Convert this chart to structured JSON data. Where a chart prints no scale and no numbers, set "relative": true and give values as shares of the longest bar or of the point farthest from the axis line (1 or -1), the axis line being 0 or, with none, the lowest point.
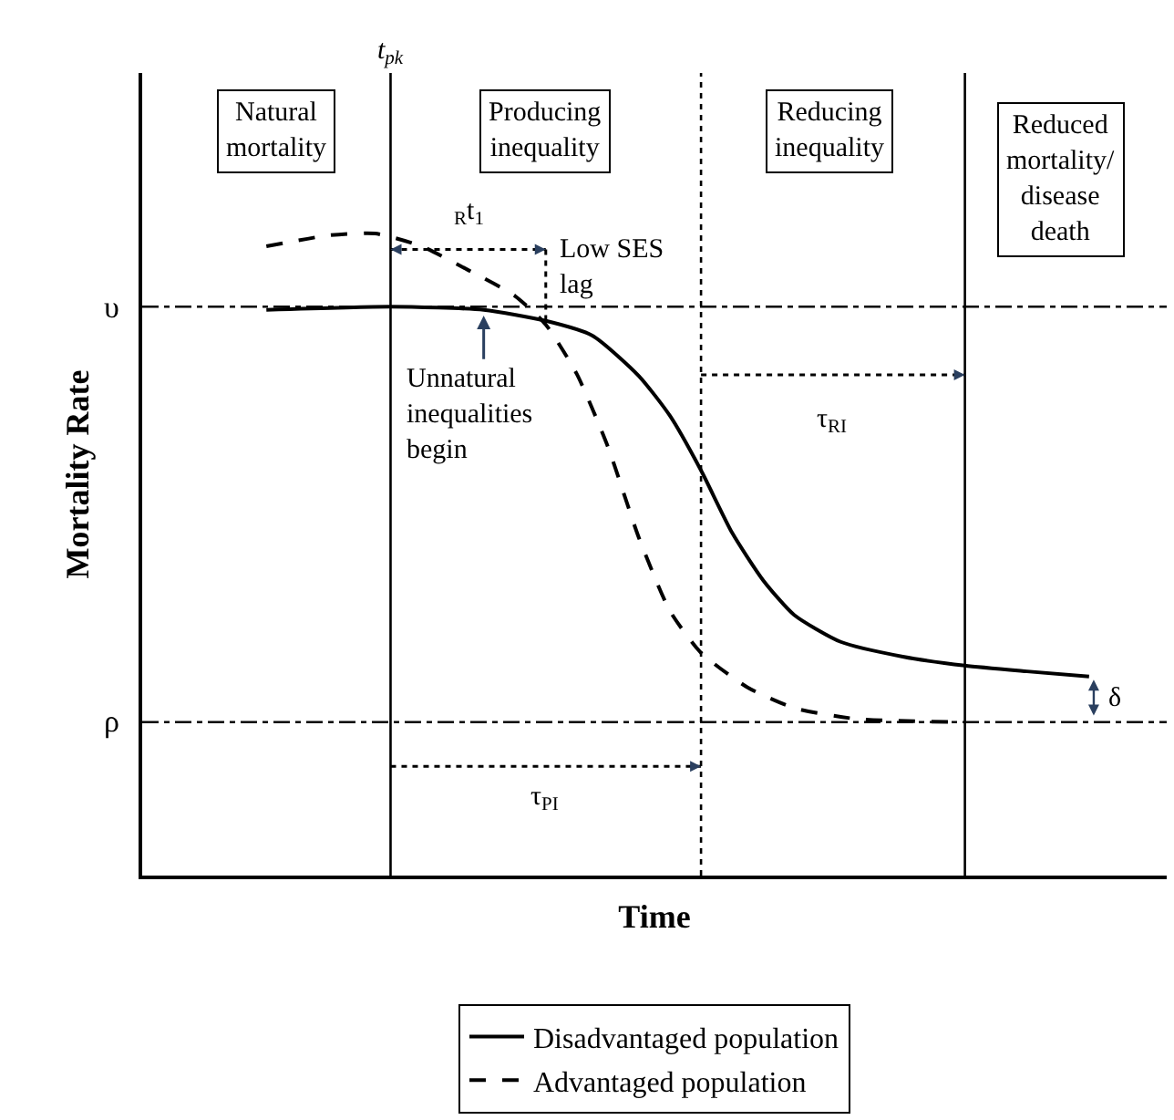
{
  "chart_data": {
    "type": "line",
    "relative": true,
    "xlabel": "Time",
    "ylabel": "Mortality Rate",
    "categories": [
      null,
      null,
      null,
      null,
      null,
      null,
      null,
      null,
      null,
      null,
      null,
      null,
      null,
      null,
      null,
      null,
      null,
      null,
      null,
      null,
      null,
      null,
      null,
      null,
      null,
      null,
      null,
      null,
      null,
      null,
      null,
      null,
      null,
      null,
      null,
      null,
      null,
      null,
      null,
      null,
      null,
      null,
      null,
      null,
      null,
      null,
      null,
      null,
      null,
      null,
      null,
      null,
      null,
      null,
      null,
      null,
      null,
      null,
      null,
      null,
      null,
      null,
      null,
      null,
      null,
      null,
      null
    ],
    "series": [
      {
        "name": "Disadvantaged population",
        "color": "#000000",
        "line_style": "solid",
        "values": [
          null,
          null,
          null,
          null,
          null,
          null,
          null,
          null,
          0.881,
          null,
          null,
          null,
          null,
          null,
          null,
          null,
          0.886,
          null,
          null,
          null,
          null,
          null,
          0.881,
          null,
          null,
          null,
          0.864,
          null,
          null,
          0.841,
          null,
          null,
          0.778,
          null,
          0.716,
          null,
          0.631,
          null,
          0.534,
          null,
          0.46,
          null,
          0.406,
          null,
          null,
          0.364,
          null,
          null,
          null,
          0.341,
          null,
          null,
          null,
          0.327,
          null,
          null,
          null,
          0.318,
          null,
          null,
          null,
          0.31,
          null,
          null,
          null,
          null,
          null
        ]
      },
      {
        "name": "Advantaged population",
        "color": "#000000",
        "line_style": "dashed",
        "values": [
          null,
          null,
          null,
          null,
          null,
          null,
          null,
          null,
          0.98,
          null,
          null,
          null,
          0.997,
          null,
          null,
          1,
          null,
          null,
          0.98,
          null,
          null,
          0.943,
          null,
          null,
          0.903,
          null,
          0.858,
          null,
          0.781,
          null,
          0.668,
          null,
          0.526,
          null,
          0.412,
          null,
          0.347,
          null,
          null,
          0.293,
          null,
          null,
          0.261,
          null,
          null,
          null,
          0.244,
          null,
          null,
          null,
          null,
          null,
          null,
          0.239,
          null,
          null,
          null,
          null,
          null,
          null,
          null,
          null,
          null,
          null,
          null,
          null,
          null
        ]
      }
    ],
    "ref_lines": [
      {
        "axis": "y",
        "value": 0.886,
        "label": "υ",
        "line_style": "dashdot",
        "color": "#000000"
      },
      {
        "axis": "y",
        "value": 0.239,
        "label": "ρ",
        "line_style": "dashdot",
        "color": "#000000"
      }
    ],
    "annotations": [
      "t$_{pk}$",
      "$_{R}$t$_{1}$",
      "Low SES\nlag",
      "Unnatural\ninequalities\nbegin",
      "τ$_{RI}$",
      "τ$_{PI}$",
      "δ",
      "Natural\nmortality",
      "Producing\ninequality",
      "Reducing\ninequality",
      "Reduced\nmortality/\ndisease\ndeath"
    ],
    "legend": "bottom",
    "grid": false,
    "tick_labels": false
  }
}
